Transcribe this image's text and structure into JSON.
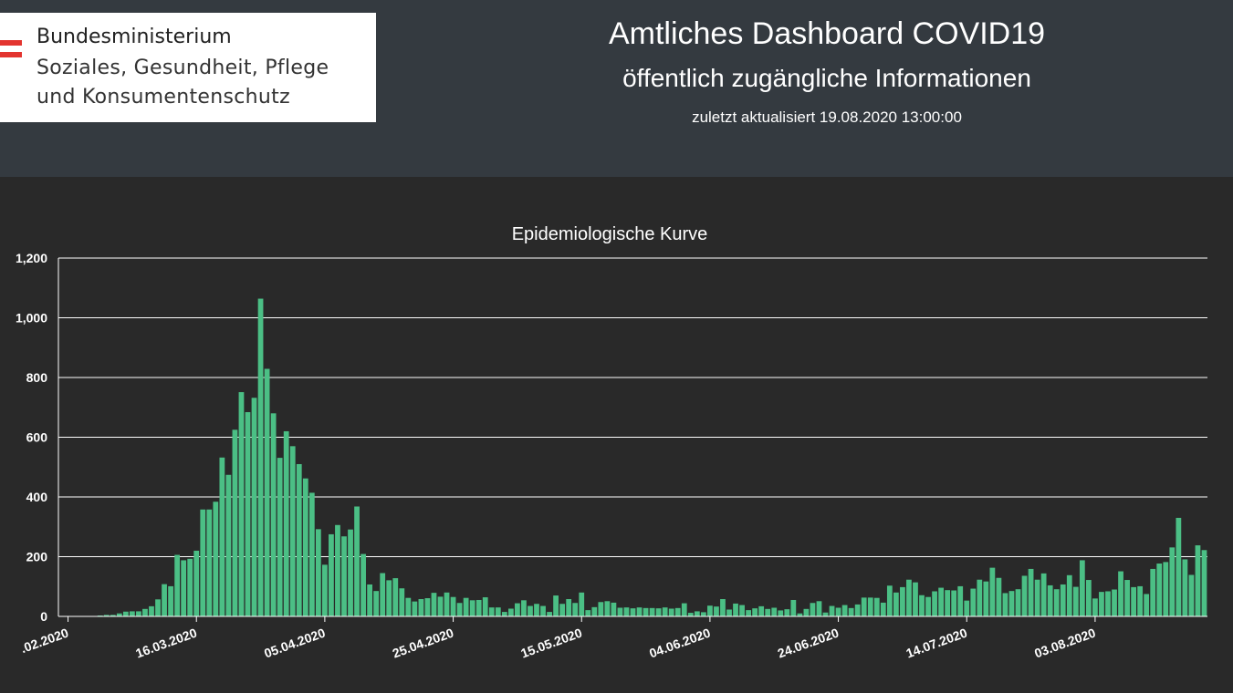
{
  "header": {
    "logo_lines": [
      "Bundesministerium",
      "Soziales, Gesundheit, Pflege",
      "und Konsumentenschutz"
    ],
    "title": "Amtliches Dashboard COVID19",
    "subtitle": "öffentlich zugängliche Informationen",
    "updated": "zuletzt aktualisiert 19.08.2020 13:00:00"
  },
  "colors": {
    "header_bg": "#343a40",
    "page_bg": "#292929",
    "bar": "#4bbf85",
    "gridline": "#ffffff",
    "flag_red": "#e3342f"
  },
  "chart_data": {
    "type": "bar",
    "title": "Epidemiologische Kurve",
    "ylim": [
      0,
      1200
    ],
    "yticks": [
      0,
      200,
      400,
      600,
      800,
      1000,
      1200
    ],
    "ytick_labels": [
      "0",
      "200",
      "400",
      "600",
      "800",
      "1,000",
      "1,200"
    ],
    "xtick_labels": [
      ".02.2020",
      "16.03.2020",
      "05.04.2020",
      "25.04.2020",
      "15.05.2020",
      "04.06.2020",
      "24.06.2020",
      "14.07.2020",
      "03.08.2020"
    ],
    "grid": true,
    "values": [
      0,
      0,
      1,
      1,
      1,
      0,
      3,
      5,
      5,
      10,
      16,
      17,
      17,
      25,
      34,
      57,
      108,
      101,
      206,
      188,
      193,
      220,
      358,
      358,
      384,
      532,
      474,
      625,
      751,
      684,
      732,
      1064,
      829,
      680,
      531,
      620,
      570,
      510,
      462,
      414,
      292,
      173,
      275,
      306,
      268,
      291,
      368,
      209,
      107,
      85,
      145,
      121,
      128,
      94,
      62,
      50,
      58,
      61,
      79,
      66,
      80,
      65,
      45,
      62,
      54,
      55,
      64,
      30,
      30,
      15,
      26,
      44,
      54,
      35,
      42,
      35,
      15,
      70,
      42,
      58,
      45,
      80,
      21,
      31,
      48,
      51,
      46,
      29,
      30,
      27,
      30,
      28,
      28,
      27,
      30,
      26,
      28,
      44,
      12,
      17,
      14,
      36,
      33,
      58,
      23,
      43,
      38,
      21,
      27,
      34,
      25,
      29,
      20,
      24,
      55,
      10,
      25,
      45,
      51,
      13,
      35,
      29,
      38,
      28,
      40,
      63,
      63,
      62,
      46,
      103,
      80,
      98,
      123,
      114,
      71,
      65,
      84,
      96,
      88,
      87,
      101,
      53,
      93,
      123,
      117,
      163,
      129,
      78,
      85,
      91,
      136,
      159,
      123,
      144,
      104,
      91,
      107,
      138,
      99,
      188,
      122,
      60,
      82,
      84,
      90,
      151,
      122,
      98,
      101,
      75,
      159,
      177,
      182,
      231,
      330,
      191,
      139,
      238,
      222
    ]
  }
}
